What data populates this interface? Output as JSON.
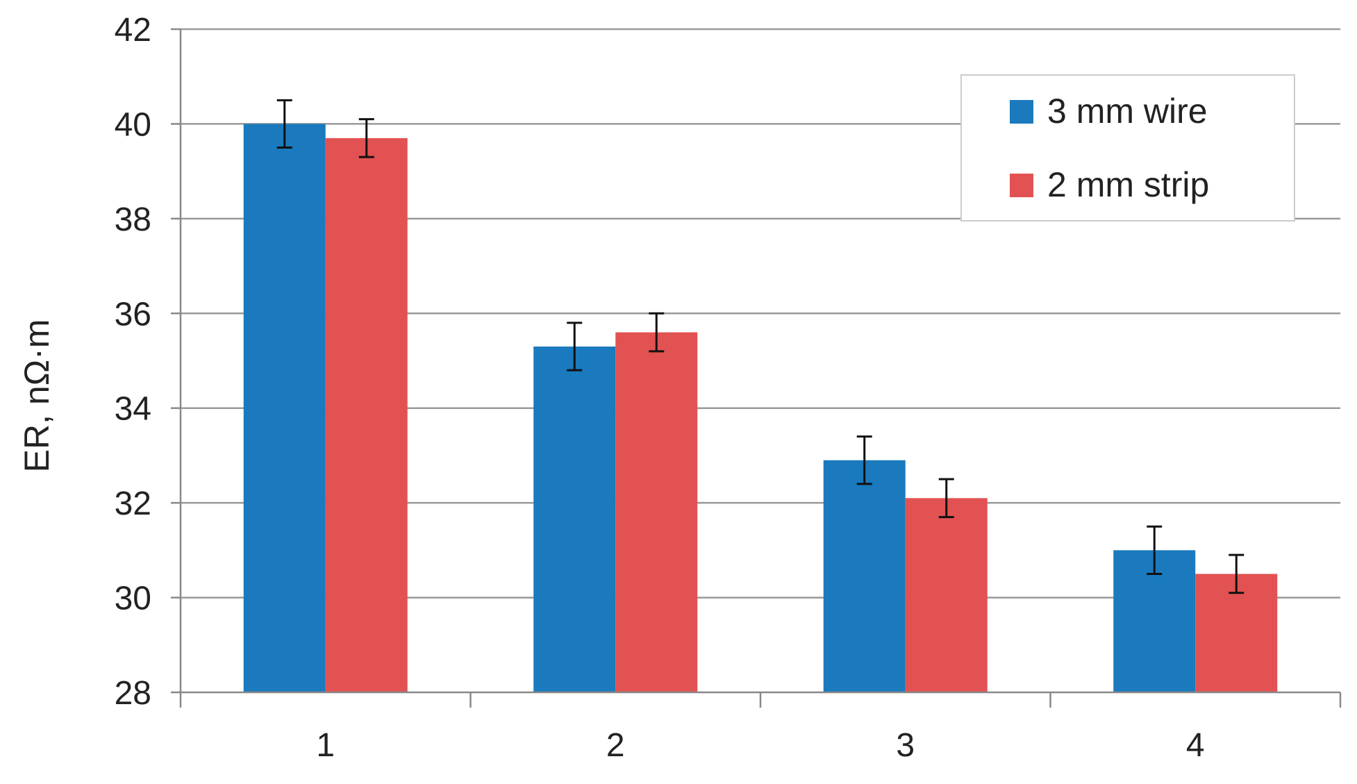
{
  "chart_data": {
    "type": "bar",
    "title": "",
    "xlabel": "",
    "ylabel": "ER, nΩ·m",
    "ylim": [
      28,
      42
    ],
    "yticks": [
      28,
      30,
      32,
      34,
      36,
      38,
      40,
      42
    ],
    "categories": [
      "1",
      "2",
      "3",
      "4"
    ],
    "grid": true,
    "legend_position": "top-right",
    "series": [
      {
        "name": "3 mm wire",
        "color": "#1a7abd",
        "values": [
          40.0,
          35.3,
          32.9,
          31.0
        ],
        "error": [
          0.5,
          0.5,
          0.5,
          0.5
        ]
      },
      {
        "name": "2 mm strip",
        "color": "#e25252",
        "values": [
          39.7,
          35.6,
          32.1,
          30.5
        ],
        "error": [
          0.4,
          0.4,
          0.4,
          0.4
        ]
      }
    ]
  }
}
